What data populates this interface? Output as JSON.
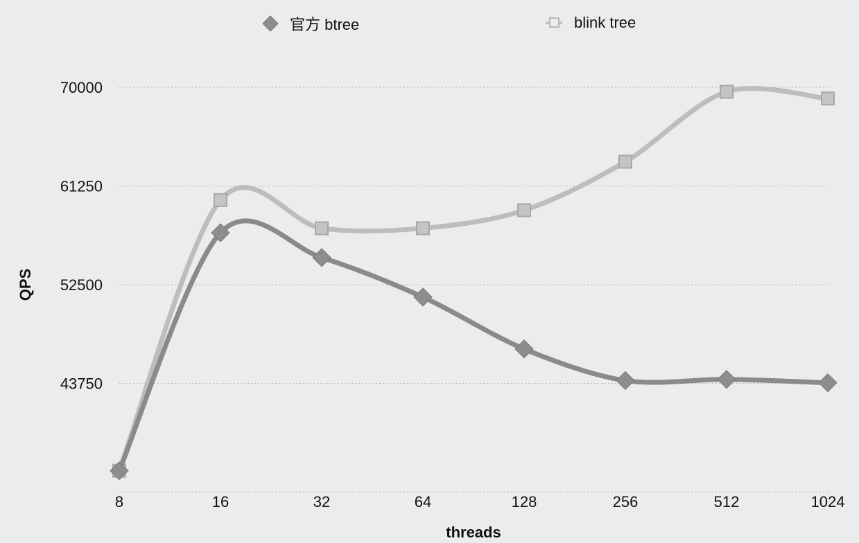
{
  "chart_data": {
    "type": "line",
    "xlabel": "threads",
    "ylabel": "QPS",
    "categories": [
      "8",
      "16",
      "32",
      "64",
      "128",
      "256",
      "512",
      "1024"
    ],
    "y_ticks": [
      43750,
      52500,
      61250,
      70000
    ],
    "y_tick_labels": [
      "43750",
      "52500",
      "61250",
      "70000"
    ],
    "ylim": [
      35000,
      70000
    ],
    "grid": true,
    "legend_position": "top",
    "series": [
      {
        "name": "官方 btree",
        "marker": "diamond",
        "color": "#8a8a8a",
        "values": [
          36000,
          57100,
          54900,
          51400,
          46800,
          44000,
          44100,
          43800
        ]
      },
      {
        "name": "blink tree",
        "marker": "square",
        "color": "#bdbdbd",
        "values": [
          36000,
          60000,
          57500,
          57500,
          59100,
          63400,
          69600,
          69000
        ]
      }
    ]
  }
}
